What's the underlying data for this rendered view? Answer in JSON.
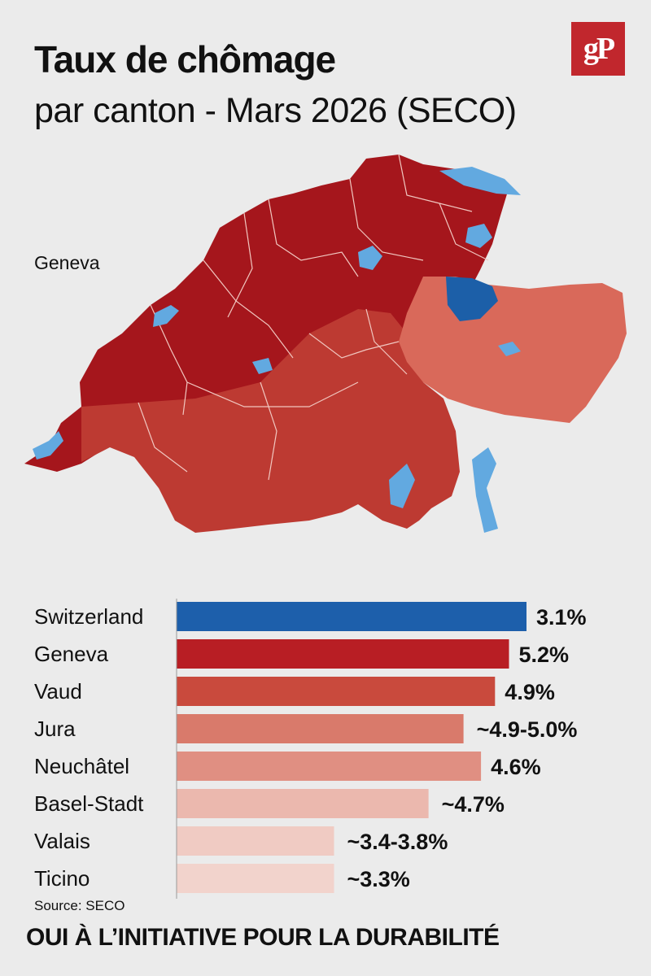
{
  "header": {
    "title": "Taux de chômage",
    "subtitle": "par canton - Mars 2026 (SECO)",
    "logo_text": "gP",
    "logo_color": "#c1272d"
  },
  "map": {
    "label": "Geneva",
    "colors": {
      "dark_red": "#a5161c",
      "mid_red": "#bd3a32",
      "light_red": "#d9695a",
      "water": "#62a9e0",
      "blue": "#1c5fa8"
    }
  },
  "chart_data": {
    "type": "bar",
    "orientation": "horizontal",
    "categories": [
      "Switzerland",
      "Geneva",
      "Vaud",
      "Jura",
      "Neuchâtel",
      "Basel-Stadt",
      "Valais",
      "Ticino"
    ],
    "values": [
      3.1,
      5.2,
      4.9,
      4.95,
      4.6,
      4.7,
      3.6,
      3.3
    ],
    "value_labels": [
      "3.1%",
      "5.2%",
      "4.9%",
      "~4.9-5.0%",
      "4.6%",
      "~4.7%",
      "~3.4-3.8%",
      "~3.3%"
    ],
    "bar_colors": [
      "#1d5fab",
      "#b81e24",
      "#c94a3d",
      "#d97a6b",
      "#e08f82",
      "#ebb8ae",
      "#f0cbc3",
      "#f2d3cc"
    ],
    "bar_lengths_relative": [
      1.0,
      0.95,
      0.91,
      0.82,
      0.87,
      0.72,
      0.45,
      0.45
    ]
  },
  "footer": {
    "source": "Source: SECO",
    "tagline": "OUI À L’INITIATIVE POUR LA DURABILITÉ"
  }
}
